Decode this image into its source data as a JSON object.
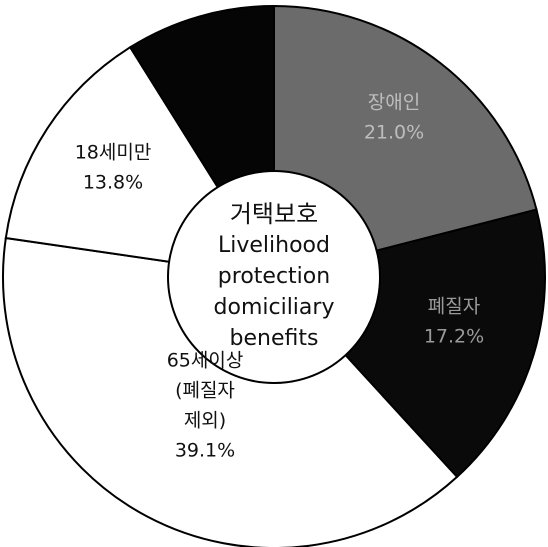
{
  "chart_data": {
    "type": "pie",
    "style": "donut",
    "start": "top",
    "direction": "clockwise",
    "center_label": [
      "거택보호",
      "Livelihood",
      "protection",
      "domiciliary",
      "benefits"
    ],
    "slices": [
      {
        "lines": [
          "장애인",
          "21.0%"
        ],
        "value": 21.0,
        "fill": "#6b6b6b",
        "text_color": "#bdbdbd"
      },
      {
        "lines": [
          "폐질자",
          "17.2%"
        ],
        "value": 17.2,
        "fill": "#0a0a0a",
        "text_color": "#9a9a9a"
      },
      {
        "lines": [
          "65세이상",
          "(폐질자",
          "제외)",
          "39.1%"
        ],
        "value": 39.1,
        "fill": "#ffffff",
        "text_color": "#111111"
      },
      {
        "lines": [
          "18세미만",
          "13.8%"
        ],
        "value": 13.8,
        "fill": "#ffffff",
        "text_color": "#111111"
      },
      {
        "lines": [],
        "value": 8.9,
        "fill": "#050505",
        "text_color": "#ffffff"
      }
    ]
  }
}
